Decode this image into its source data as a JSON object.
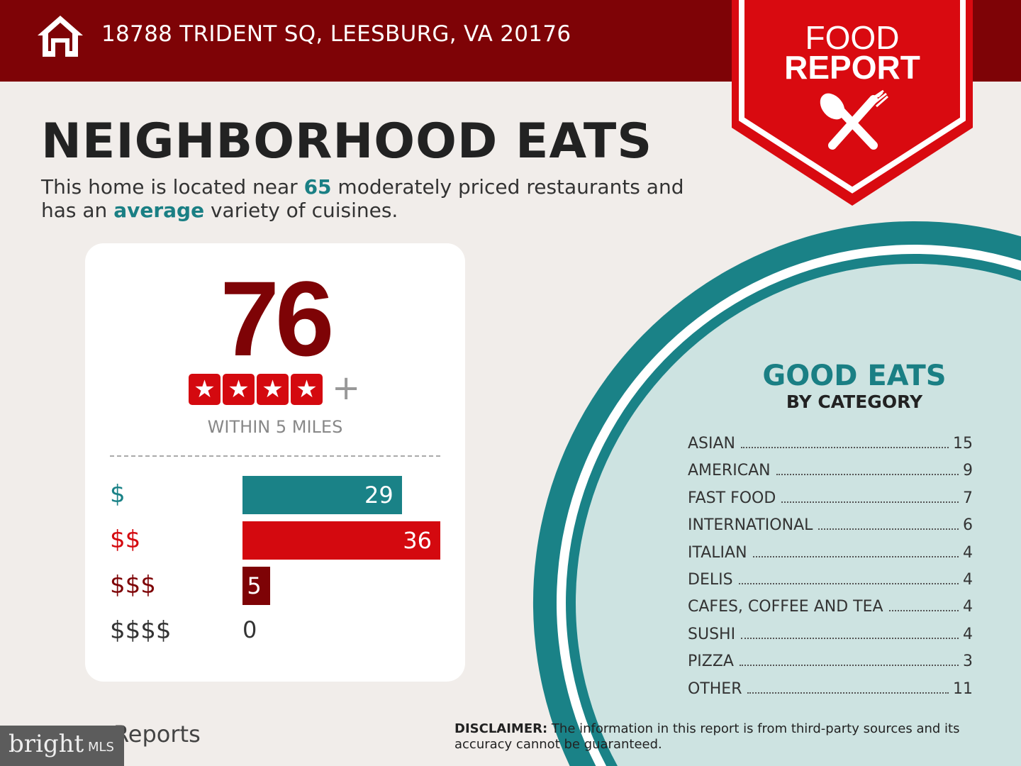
{
  "header": {
    "address": "18788 TRIDENT SQ, LEESBURG, VA 20176",
    "badge_line1": "FOOD",
    "badge_line2": "REPORT"
  },
  "title": "NEIGHBORHOOD EATS",
  "subtitle": {
    "pre": "This home is located near ",
    "count": "65",
    "mid": " moderately priced restaurants and has an ",
    "variety": "average",
    "post": " variety of cuisines."
  },
  "score": {
    "value": "76",
    "stars": 4,
    "plus": "+",
    "within": "WITHIN 5 MILES"
  },
  "price_levels": [
    {
      "label": "$",
      "value": 29,
      "color": "#1a8287"
    },
    {
      "label": "$$",
      "value": 36,
      "color": "#d4090f"
    },
    {
      "label": "$$$",
      "value": 5,
      "color": "#7e0306"
    },
    {
      "label": "$$$$",
      "value": 0,
      "color": "#333333"
    }
  ],
  "good_eats": {
    "title": "GOOD EATS",
    "subtitle": "BY CATEGORY",
    "categories": [
      {
        "name": "ASIAN",
        "count": "15"
      },
      {
        "name": "AMERICAN",
        "count": "9"
      },
      {
        "name": "FAST FOOD",
        "count": "7"
      },
      {
        "name": "INTERNATIONAL",
        "count": "6"
      },
      {
        "name": "ITALIAN",
        "count": "4"
      },
      {
        "name": "DELIS",
        "count": "4"
      },
      {
        "name": "CAFES, COFFEE AND TEA",
        "count": "4"
      },
      {
        "name": "SUSHI",
        "count": "4"
      },
      {
        "name": "PIZZA",
        "count": "3"
      },
      {
        "name": "OTHER",
        "count": "11"
      }
    ]
  },
  "footer": {
    "reports": "Reports",
    "mls_logo": "bright MLS",
    "disclaimer_label": "DISCLAIMER:",
    "disclaimer": " The information in this report is from third-party sources and its accuracy cannot be guaranteed."
  },
  "colors": {
    "maroon": "#7e0306",
    "red": "#d4090f",
    "teal": "#1a8287"
  }
}
